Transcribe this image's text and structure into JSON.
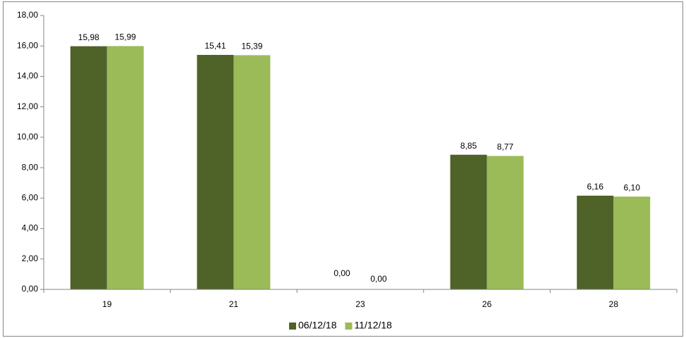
{
  "chart_data": {
    "type": "bar",
    "categories": [
      "19",
      "21",
      "23",
      "26",
      "28"
    ],
    "series": [
      {
        "name": "06/12/18",
        "color": "#4f6228",
        "values": [
          15.98,
          15.41,
          0,
          8.85,
          6.16
        ],
        "value_labels": [
          "15,98",
          "15,41",
          "0,00",
          "8,85",
          "6,16"
        ]
      },
      {
        "name": "11/12/18",
        "color": "#9bbb59",
        "values": [
          15.99,
          15.39,
          0,
          8.77,
          6.1
        ],
        "value_labels": [
          "15,99",
          "15,39",
          "0,00",
          "8,77",
          "6,10"
        ]
      }
    ],
    "ylim": [
      0,
      18
    ],
    "yticks": [
      {
        "value": 0,
        "label": "0,00"
      },
      {
        "value": 2,
        "label": "2,00"
      },
      {
        "value": 4,
        "label": "4,00"
      },
      {
        "value": 6,
        "label": "6,00"
      },
      {
        "value": 8,
        "label": "8,00"
      },
      {
        "value": 10,
        "label": "10,00"
      },
      {
        "value": 12,
        "label": "12,00"
      },
      {
        "value": 14,
        "label": "14,00"
      },
      {
        "value": 16,
        "label": "16,00"
      },
      {
        "value": 18,
        "label": "18,00"
      }
    ],
    "legend": "bottom"
  }
}
